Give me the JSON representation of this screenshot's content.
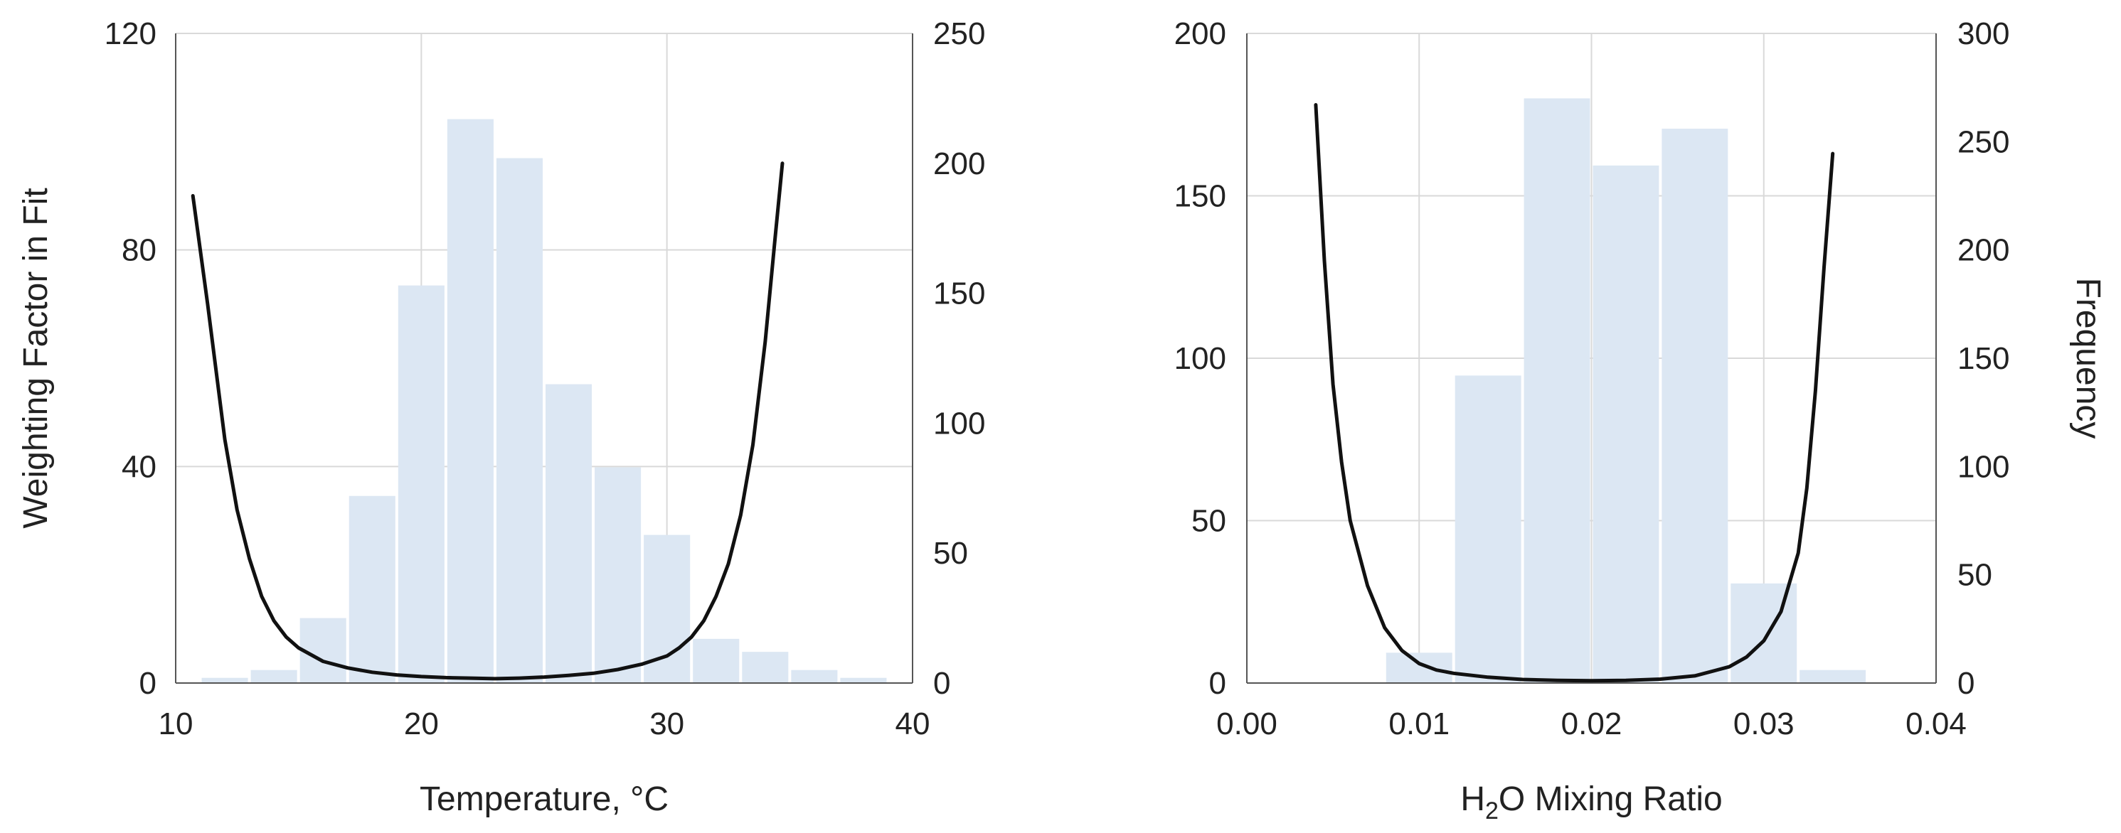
{
  "colors": {
    "bars": "#dce7f3",
    "curve": "#111111",
    "grid": "#d9d9d9",
    "axis": "#555555"
  },
  "chart_data": [
    {
      "type": "bar",
      "title": "",
      "xlabel": "Temperature, °C",
      "xlabel_sub": "",
      "xlabel_rest": "",
      "ylabel_left": "Weighting Factor in Fit",
      "ylabel_right": "",
      "x_ticks": [
        "10",
        "20",
        "30",
        "40"
      ],
      "xlim": [
        10,
        40
      ],
      "y_left_ticks": [
        "0",
        "40",
        "80",
        "120"
      ],
      "ylim_left": [
        0,
        120
      ],
      "y_right_ticks": [
        "0",
        "50",
        "100",
        "150",
        "200",
        "250"
      ],
      "ylim_right": [
        0,
        250
      ],
      "grid": true,
      "histogram": {
        "name": "Frequency",
        "axis": "right",
        "bin_edges": [
          11,
          13,
          15,
          17,
          19,
          21,
          23,
          25,
          27,
          29,
          31,
          33,
          35,
          37,
          39
        ],
        "values": [
          2,
          5,
          25,
          72,
          153,
          217,
          202,
          115,
          83,
          57,
          17,
          12,
          5,
          2
        ]
      },
      "curve": {
        "name": "Weighting Factor",
        "axis": "left",
        "x": [
          10.7,
          11.3,
          12,
          12.5,
          13,
          13.5,
          14,
          14.5,
          15,
          16,
          17,
          18,
          19,
          20,
          21,
          22,
          23,
          24,
          25,
          26,
          27,
          28,
          29,
          30,
          30.5,
          31,
          31.5,
          32,
          32.5,
          33,
          33.5,
          34,
          34.4,
          34.7
        ],
        "y": [
          90,
          70,
          45,
          32,
          23,
          16,
          11.5,
          8.5,
          6.5,
          4,
          2.8,
          2,
          1.5,
          1.2,
          1,
          0.9,
          0.8,
          0.9,
          1.1,
          1.4,
          1.8,
          2.5,
          3.5,
          5,
          6.5,
          8.5,
          11.5,
          16,
          22,
          31,
          44,
          63,
          82,
          96
        ]
      }
    },
    {
      "type": "bar",
      "title": "",
      "xlabel": "H2O Mixing Ratio",
      "xlabel_main": "H",
      "xlabel_sub": "2",
      "xlabel_rest": "O Mixing Ratio",
      "ylabel_left": "",
      "ylabel_right": "Frequency",
      "x_ticks": [
        "0.00",
        "0.01",
        "0.02",
        "0.03",
        "0.04"
      ],
      "xlim": [
        0,
        0.04
      ],
      "y_left_ticks": [
        "0",
        "50",
        "100",
        "150",
        "200"
      ],
      "ylim_left": [
        0,
        200
      ],
      "y_right_ticks": [
        "0",
        "50",
        "100",
        "150",
        "200",
        "250",
        "300"
      ],
      "ylim_right": [
        0,
        300
      ],
      "grid": true,
      "histogram": {
        "name": "Frequency",
        "axis": "right",
        "bin_edges": [
          0.008,
          0.012,
          0.016,
          0.02,
          0.024,
          0.028,
          0.032,
          0.036
        ],
        "values": [
          14,
          142,
          270,
          239,
          256,
          46,
          6
        ]
      },
      "curve": {
        "name": "Weighting Factor",
        "axis": "left",
        "x": [
          0.004,
          0.0045,
          0.005,
          0.0055,
          0.006,
          0.007,
          0.008,
          0.009,
          0.01,
          0.011,
          0.012,
          0.014,
          0.016,
          0.018,
          0.02,
          0.022,
          0.024,
          0.026,
          0.028,
          0.029,
          0.03,
          0.031,
          0.032,
          0.0325,
          0.033,
          0.0335,
          0.034
        ],
        "y": [
          178,
          130,
          92,
          68,
          50,
          30,
          17,
          10,
          6,
          4,
          3,
          1.8,
          1.1,
          0.8,
          0.7,
          0.8,
          1.2,
          2.2,
          5,
          8,
          13,
          22,
          40,
          60,
          90,
          128,
          163
        ]
      }
    }
  ]
}
